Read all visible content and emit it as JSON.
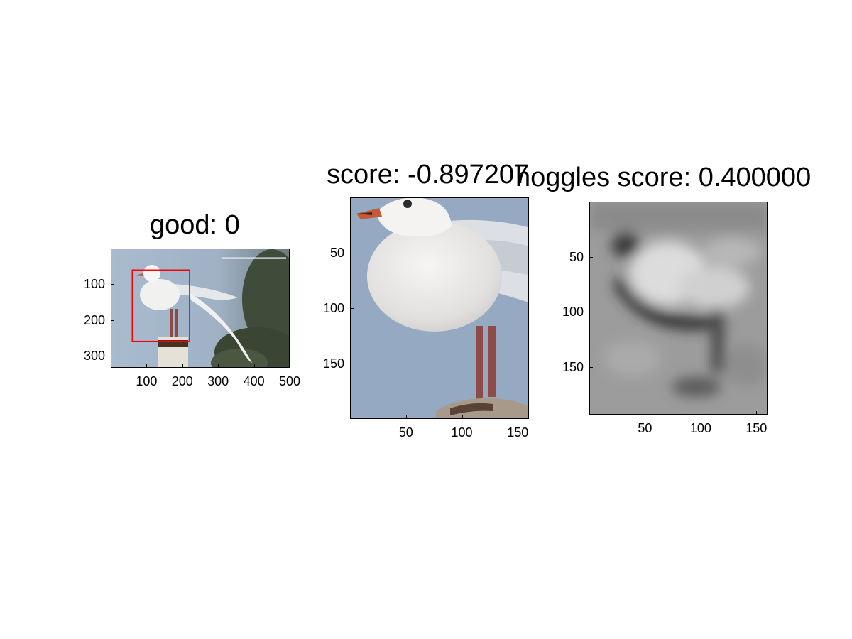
{
  "chart_data": [
    {
      "type": "image",
      "title": "good: 0",
      "xticks": [
        100,
        200,
        300,
        400,
        500
      ],
      "yticks": [
        100,
        200,
        300
      ],
      "xlim": [
        0,
        500
      ],
      "ylim": [
        0,
        333
      ],
      "box": {
        "x1": 58,
        "y1": 58,
        "x2": 218,
        "y2": 257
      },
      "colors": {
        "box": "#ff0000",
        "sky": "#a3b6cb",
        "foliage": "#394636"
      }
    },
    {
      "type": "image",
      "title": "score: -0.897207",
      "xticks": [
        50,
        100,
        150
      ],
      "yticks": [
        50,
        100,
        150
      ],
      "xlim": [
        0,
        160
      ],
      "ylim": [
        0,
        200
      ],
      "colors": {
        "sky": "#93a9c1",
        "body": "#e8e6e4",
        "legs": "#8d4a46",
        "beak": "#c25a3a"
      }
    },
    {
      "type": "image",
      "title": "hoggles score: 0.400000",
      "xticks": [
        50,
        100,
        150
      ],
      "yticks": [
        50,
        100,
        150
      ],
      "xlim": [
        0,
        160
      ],
      "ylim": [
        0,
        193
      ],
      "colors": {
        "bg": "#9c9c9c"
      }
    }
  ]
}
